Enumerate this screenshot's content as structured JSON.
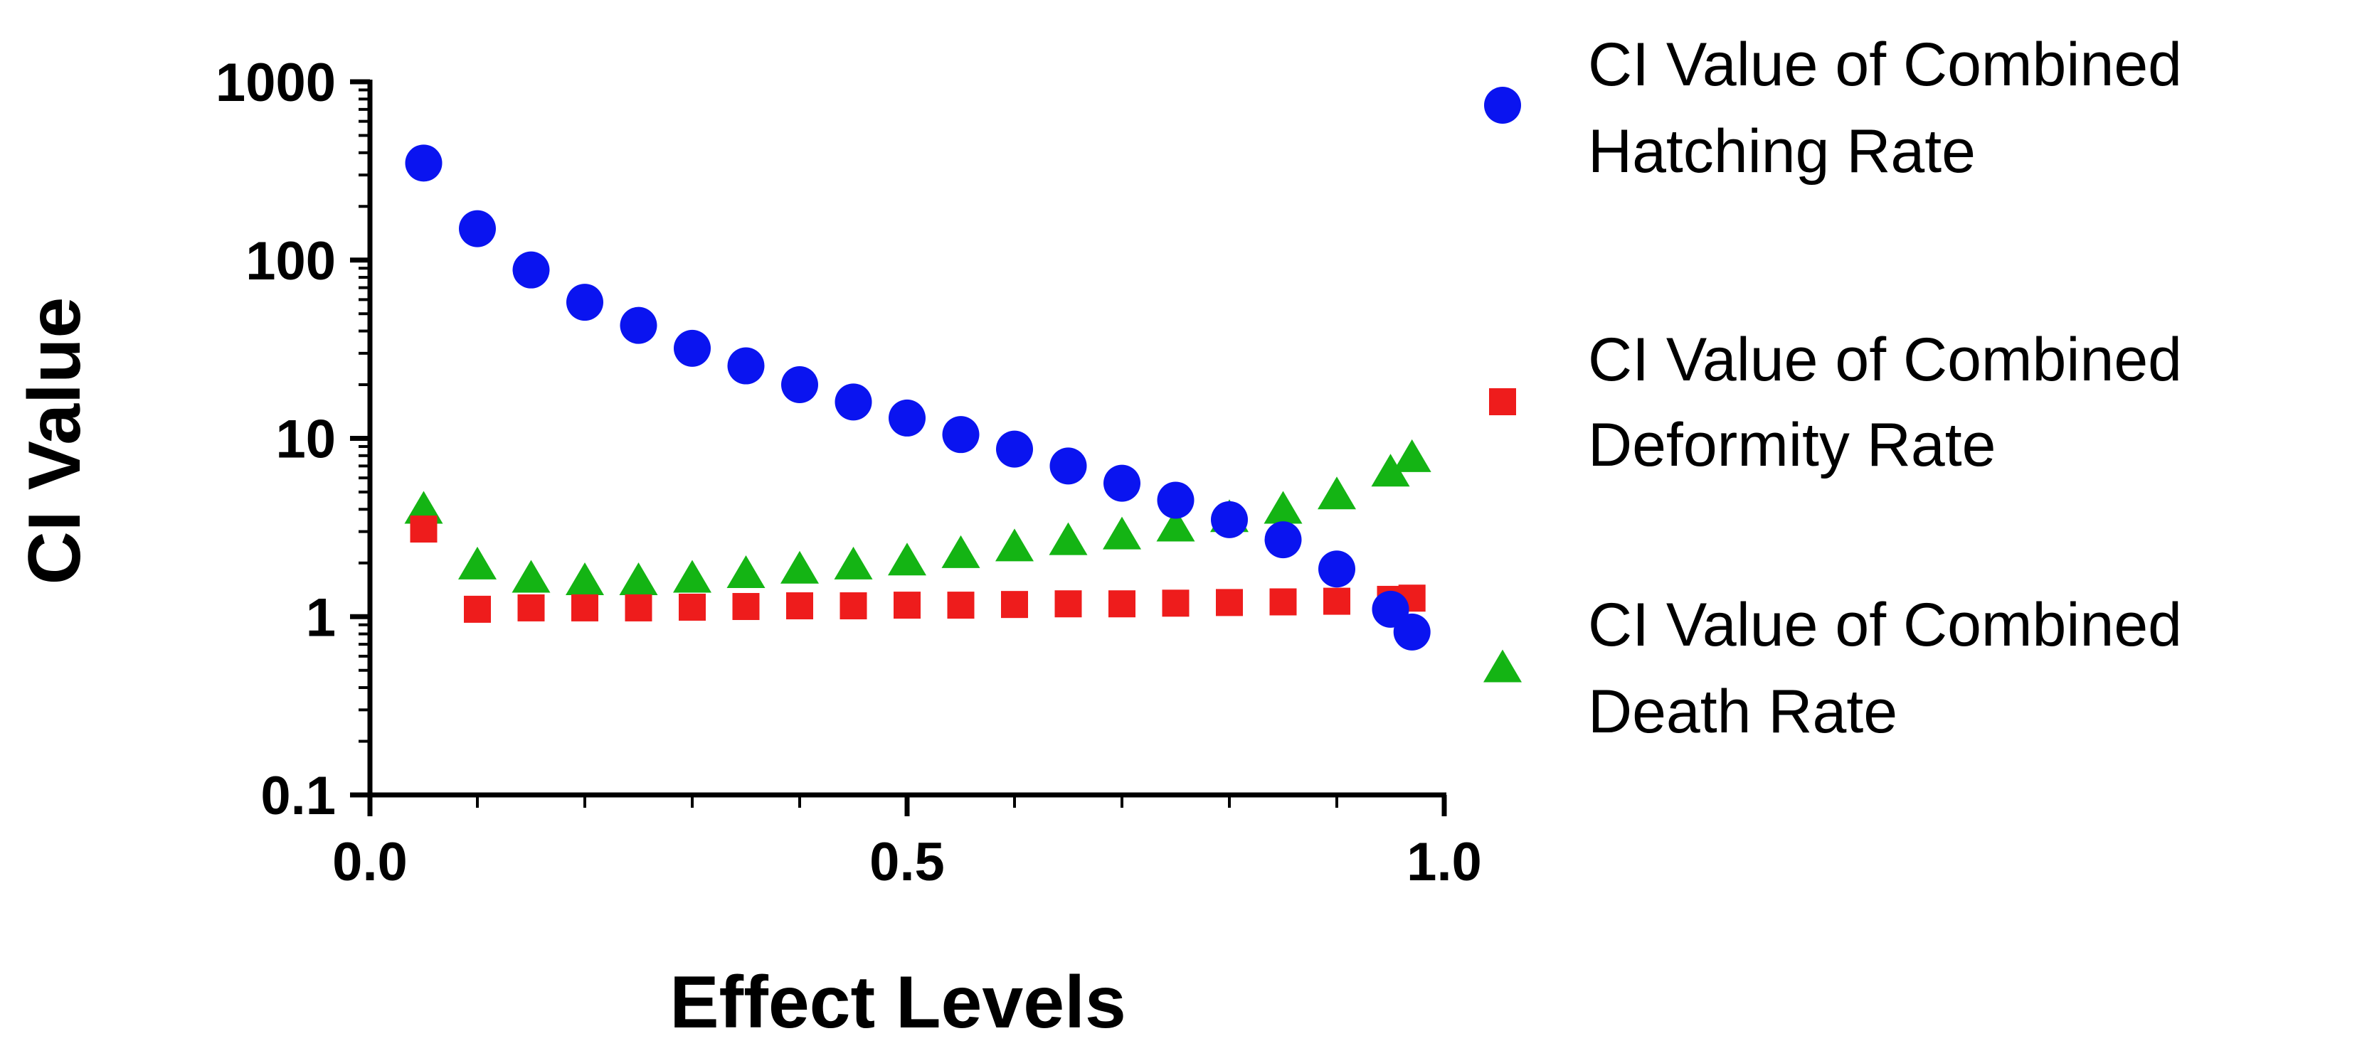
{
  "chart_data": {
    "type": "scatter",
    "title": "",
    "xlabel": "Effect Levels",
    "ylabel": "CI Value",
    "xlim": [
      0.0,
      1.0
    ],
    "ylim": [
      0.1,
      1000
    ],
    "yscale": "log",
    "grid": false,
    "legend_position": "right",
    "x_ticks": [
      {
        "value": 0.0,
        "label": "0.0"
      },
      {
        "value": 0.5,
        "label": "0.5"
      },
      {
        "value": 1.0,
        "label": "1.0"
      }
    ],
    "x_minor_ticks": [
      0.1,
      0.2,
      0.3,
      0.4,
      0.6,
      0.7,
      0.8,
      0.9
    ],
    "y_ticks": [
      {
        "value": 0.1,
        "label": "0.1"
      },
      {
        "value": 1,
        "label": "1"
      },
      {
        "value": 10,
        "label": "10"
      },
      {
        "value": 100,
        "label": "100"
      },
      {
        "value": 1000,
        "label": "1000"
      }
    ],
    "x": [
      0.05,
      0.1,
      0.15,
      0.2,
      0.25,
      0.3,
      0.35,
      0.4,
      0.45,
      0.5,
      0.55,
      0.6,
      0.65,
      0.7,
      0.75,
      0.8,
      0.85,
      0.9,
      0.95,
      0.97
    ],
    "series": [
      {
        "name": "CI Value of Combined Hatching Rate",
        "legend_lines": [
          "CI Value of Combined",
          "Hatching Rate"
        ],
        "marker": "circle",
        "color": "#0a14f0",
        "values": [
          350,
          150,
          88,
          58,
          43,
          32,
          25.5,
          20,
          16,
          13,
          10.5,
          8.7,
          7,
          5.6,
          4.5,
          3.5,
          2.7,
          1.85,
          1.1,
          0.82
        ]
      },
      {
        "name": "CI Value of Combined Deformity Rate",
        "legend_lines": [
          "CI Value of Combined",
          "Deformity Rate"
        ],
        "marker": "square",
        "color": "#ee1c1c",
        "values": [
          3.1,
          1.1,
          1.12,
          1.12,
          1.12,
          1.13,
          1.14,
          1.15,
          1.15,
          1.16,
          1.16,
          1.17,
          1.18,
          1.18,
          1.19,
          1.2,
          1.21,
          1.22,
          1.25,
          1.27
        ]
      },
      {
        "name": "CI Value of Combined Death Rate",
        "legend_lines": [
          "CI Value of Combined",
          "Death Rate"
        ],
        "marker": "triangle",
        "color": "#14b414",
        "values": [
          3.9,
          1.9,
          1.6,
          1.55,
          1.55,
          1.6,
          1.7,
          1.8,
          1.9,
          2.0,
          2.2,
          2.4,
          2.6,
          2.8,
          3.1,
          3.5,
          3.9,
          4.7,
          6.3,
          7.6
        ]
      }
    ]
  }
}
